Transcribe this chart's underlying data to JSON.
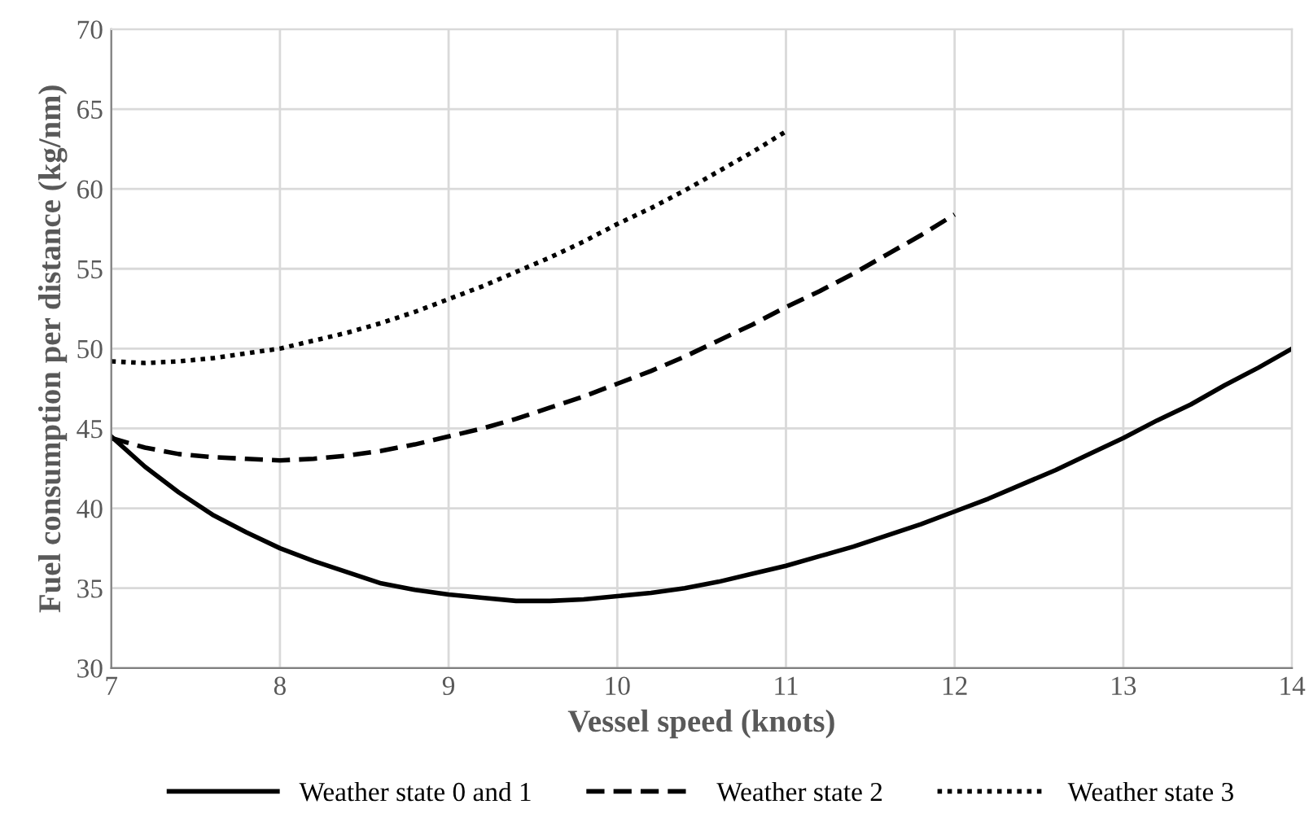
{
  "chart_data": {
    "type": "line",
    "xlabel": "Vessel speed (knots)",
    "ylabel": "Fuel consumption per distance (kg/nm)",
    "xlim": [
      7,
      14
    ],
    "xticks": [
      7,
      8,
      9,
      10,
      11,
      12,
      13,
      14
    ],
    "ylim": [
      30,
      70
    ],
    "yticks": [
      30,
      35,
      40,
      45,
      50,
      55,
      60,
      65,
      70
    ],
    "grid": true,
    "legend": "bottom",
    "marker": "none",
    "series": [
      {
        "name": "Weather state 0 and 1",
        "color": "#000000",
        "line_style": "solid",
        "x": [
          7,
          7.2,
          7.4,
          7.6,
          7.8,
          8,
          8.2,
          8.4,
          8.6,
          8.8,
          9,
          9.2,
          9.4,
          9.6,
          9.8,
          10,
          10.2,
          10.4,
          10.6,
          10.8,
          11,
          11.2,
          11.4,
          11.6,
          11.8,
          12,
          12.2,
          12.4,
          12.6,
          12.8,
          13,
          13.2,
          13.4,
          13.6,
          13.8,
          14
        ],
        "values": [
          44.5,
          42.6,
          41,
          39.6,
          38.5,
          37.5,
          36.7,
          36,
          35.3,
          34.9,
          34.6,
          34.4,
          34.2,
          34.2,
          34.3,
          34.5,
          34.7,
          35,
          35.4,
          35.9,
          36.4,
          37,
          37.6,
          38.3,
          39,
          39.8,
          40.6,
          41.5,
          42.4,
          43.4,
          44.4,
          45.5,
          46.5,
          47.7,
          48.8,
          50
        ]
      },
      {
        "name": "Weather state 2",
        "color": "#000000",
        "line_style": "dashed",
        "x": [
          7,
          7.2,
          7.4,
          7.6,
          7.8,
          8,
          8.2,
          8.4,
          8.6,
          8.8,
          9,
          9.2,
          9.4,
          9.6,
          9.8,
          10,
          10.2,
          10.4,
          10.6,
          10.8,
          11,
          11.2,
          11.4,
          11.6,
          11.8,
          12
        ],
        "values": [
          44.4,
          43.8,
          43.4,
          43.2,
          43.1,
          43.0,
          43.1,
          43.3,
          43.6,
          44.0,
          44.5,
          45.0,
          45.6,
          46.3,
          47.0,
          47.8,
          48.6,
          49.5,
          50.5,
          51.5,
          52.6,
          53.6,
          54.7,
          55.9,
          57.1,
          58.4
        ]
      },
      {
        "name": "Weather state 3",
        "color": "#000000",
        "line_style": "dotted",
        "x": [
          7,
          7.2,
          7.4,
          7.6,
          7.8,
          8,
          8.2,
          8.4,
          8.6,
          8.8,
          9,
          9.2,
          9.4,
          9.6,
          9.8,
          10,
          10.2,
          10.4,
          10.6,
          10.8,
          11
        ],
        "values": [
          49.2,
          49.1,
          49.2,
          49.4,
          49.7,
          50.0,
          50.5,
          51.0,
          51.6,
          52.3,
          53.1,
          53.9,
          54.8,
          55.7,
          56.7,
          57.8,
          58.8,
          59.9,
          61.1,
          62.3,
          63.6
        ]
      }
    ]
  }
}
